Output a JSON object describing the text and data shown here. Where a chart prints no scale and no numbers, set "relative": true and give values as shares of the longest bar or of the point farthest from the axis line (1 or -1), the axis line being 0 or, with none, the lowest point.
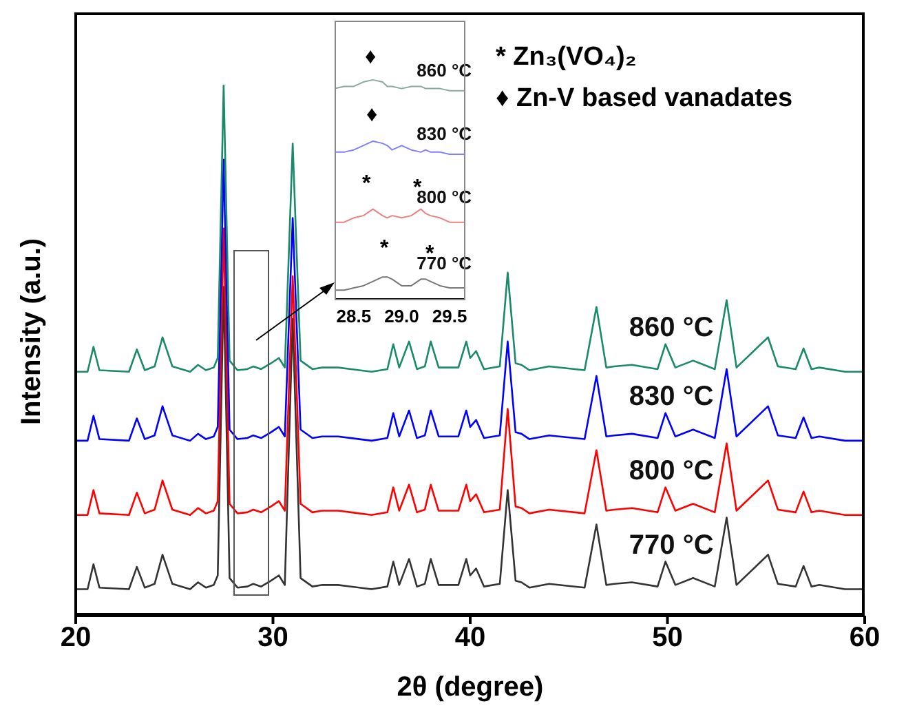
{
  "chart_data": [
    {
      "type": "line",
      "relative": true,
      "xlabel": "2θ (degree)",
      "ylabel": "Intensity (a.u.)",
      "xlim": [
        20,
        60
      ],
      "xticks": [
        20,
        30,
        40,
        50,
        60
      ],
      "tick_labels": "x",
      "annotations": [
        "* Zn₃(VO₄)₂",
        "♦ Zn-V based vanadates"
      ],
      "x": [
        20,
        20.6,
        20.9,
        21.2,
        22.7,
        23.1,
        23.5,
        24.0,
        24.4,
        24.9,
        25.8,
        26.2,
        26.6,
        27.0,
        27.2,
        27.5,
        27.8,
        28.2,
        28.7,
        29.0,
        29.4,
        29.9,
        30.3,
        30.6,
        31.0,
        31.4,
        32.0,
        32.5,
        33.3,
        35.0,
        35.8,
        36.1,
        36.4,
        36.9,
        37.3,
        37.7,
        38.0,
        38.4,
        39.4,
        39.8,
        40.0,
        40.3,
        40.7,
        41.5,
        41.9,
        42.3,
        42.6,
        43.0,
        44.0,
        45.8,
        46.4,
        46.9,
        47.3,
        48.2,
        49.5,
        49.9,
        50.4,
        51.3,
        52.4,
        53.0,
        53.5,
        55.1,
        55.6,
        56.5,
        56.9,
        57.3,
        57.7,
        59,
        60
      ],
      "series": [
        {
          "name": "770 °C",
          "color": "#333333",
          "values": [
            0.05,
            0.05,
            0.097,
            0.053,
            0.05,
            0.092,
            0.053,
            0.06,
            0.115,
            0.06,
            0.05,
            0.063,
            0.053,
            0.058,
            0.076,
            0.62,
            0.071,
            0.053,
            0.055,
            0.06,
            0.055,
            0.066,
            0.076,
            0.058,
            0.56,
            0.071,
            0.055,
            0.058,
            0.058,
            0.05,
            0.055,
            0.102,
            0.058,
            0.107,
            0.055,
            0.06,
            0.107,
            0.058,
            0.058,
            0.107,
            0.076,
            0.089,
            0.055,
            0.06,
            0.237,
            0.066,
            0.063,
            0.053,
            0.06,
            0.053,
            0.172,
            0.058,
            0.06,
            0.063,
            0.055,
            0.102,
            0.058,
            0.071,
            0.055,
            0.185,
            0.058,
            0.115,
            0.06,
            0.055,
            0.094,
            0.055,
            0.058,
            0.05,
            0.05
          ]
        },
        {
          "name": "800 °C",
          "color": "#ff0000",
          "values": [
            0.19,
            0.19,
            0.237,
            0.193,
            0.19,
            0.232,
            0.193,
            0.2,
            0.255,
            0.2,
            0.19,
            0.203,
            0.193,
            0.198,
            0.216,
            0.73,
            0.211,
            0.193,
            0.195,
            0.2,
            0.195,
            0.206,
            0.216,
            0.198,
            0.64,
            0.211,
            0.195,
            0.198,
            0.198,
            0.19,
            0.195,
            0.242,
            0.198,
            0.247,
            0.195,
            0.2,
            0.247,
            0.198,
            0.198,
            0.247,
            0.216,
            0.229,
            0.195,
            0.2,
            0.39,
            0.206,
            0.203,
            0.193,
            0.2,
            0.193,
            0.312,
            0.198,
            0.2,
            0.203,
            0.195,
            0.242,
            0.198,
            0.211,
            0.195,
            0.325,
            0.198,
            0.255,
            0.2,
            0.195,
            0.234,
            0.195,
            0.198,
            0.19,
            0.19
          ]
        },
        {
          "name": "830 °C",
          "color": "#0000ff",
          "values": [
            0.33,
            0.33,
            0.377,
            0.333,
            0.33,
            0.372,
            0.333,
            0.34,
            0.395,
            0.34,
            0.33,
            0.343,
            0.333,
            0.338,
            0.356,
            0.86,
            0.351,
            0.333,
            0.335,
            0.34,
            0.335,
            0.346,
            0.356,
            0.338,
            0.75,
            0.351,
            0.335,
            0.338,
            0.338,
            0.33,
            0.335,
            0.382,
            0.338,
            0.387,
            0.335,
            0.34,
            0.387,
            0.338,
            0.338,
            0.387,
            0.356,
            0.369,
            0.335,
            0.34,
            0.517,
            0.346,
            0.343,
            0.333,
            0.34,
            0.333,
            0.452,
            0.338,
            0.34,
            0.343,
            0.335,
            0.382,
            0.338,
            0.351,
            0.335,
            0.465,
            0.338,
            0.395,
            0.34,
            0.335,
            0.374,
            0.335,
            0.338,
            0.33,
            0.33
          ]
        },
        {
          "name": "860 °C",
          "color": "#1a8a6a",
          "values": [
            0.46,
            0.46,
            0.507,
            0.463,
            0.46,
            0.502,
            0.463,
            0.47,
            0.525,
            0.47,
            0.46,
            0.473,
            0.463,
            0.468,
            0.486,
            1,
            0.481,
            0.463,
            0.465,
            0.47,
            0.465,
            0.476,
            0.486,
            0.468,
            0.89,
            0.481,
            0.465,
            0.468,
            0.468,
            0.46,
            0.465,
            0.512,
            0.468,
            0.517,
            0.465,
            0.47,
            0.517,
            0.468,
            0.468,
            0.517,
            0.486,
            0.499,
            0.465,
            0.47,
            0.647,
            0.476,
            0.473,
            0.463,
            0.47,
            0.463,
            0.582,
            0.468,
            0.47,
            0.473,
            0.465,
            0.512,
            0.468,
            0.481,
            0.465,
            0.595,
            0.468,
            0.525,
            0.47,
            0.465,
            0.504,
            0.465,
            0.468,
            0.46,
            0.46
          ]
        }
      ]
    },
    {
      "type": "line",
      "relative": true,
      "xlim": [
        28.3,
        29.65
      ],
      "xticks": [
        {
          "value": 28.5,
          "label": "28.5"
        },
        {
          "value": 29,
          "label": "29.0"
        },
        {
          "value": 29.5,
          "label": "29.5"
        }
      ],
      "tick_labels": "x",
      "annotations": [
        "♦",
        "♦",
        "*",
        "*",
        "*",
        "*"
      ],
      "x": [
        28.3,
        28.4,
        28.5,
        28.6,
        28.7,
        28.8,
        28.85,
        28.9,
        29.0,
        29.1,
        29.2,
        29.25,
        29.3,
        29.4,
        29.5,
        29.65
      ],
      "series": [
        {
          "name": "770 °C",
          "color": "#777777",
          "values": [
            0.04,
            0.04,
            0.05,
            0.06,
            0.08,
            0.1,
            0.1,
            0.09,
            0.06,
            0.06,
            0.09,
            0.09,
            0.08,
            0.06,
            0.05,
            0.05
          ]
        },
        {
          "name": "800 °C",
          "color": "#ee8080",
          "values": [
            0.35,
            0.35,
            0.37,
            0.38,
            0.41,
            0.38,
            0.37,
            0.38,
            0.37,
            0.38,
            0.41,
            0.39,
            0.38,
            0.37,
            0.35,
            0.35
          ]
        },
        {
          "name": "830 °C",
          "color": "#8080ff",
          "values": [
            0.67,
            0.67,
            0.68,
            0.7,
            0.72,
            0.71,
            0.7,
            0.68,
            0.7,
            0.68,
            0.67,
            0.68,
            0.67,
            0.67,
            0.66,
            0.66
          ]
        },
        {
          "name": "860 °C",
          "color": "#8aa8a0",
          "values": [
            0.96,
            0.97,
            0.97,
            0.99,
            1,
            0.99,
            0.97,
            0.97,
            0.96,
            0.97,
            0.97,
            0.96,
            0.96,
            0.96,
            0.95,
            0.95
          ]
        }
      ]
    }
  ]
}
